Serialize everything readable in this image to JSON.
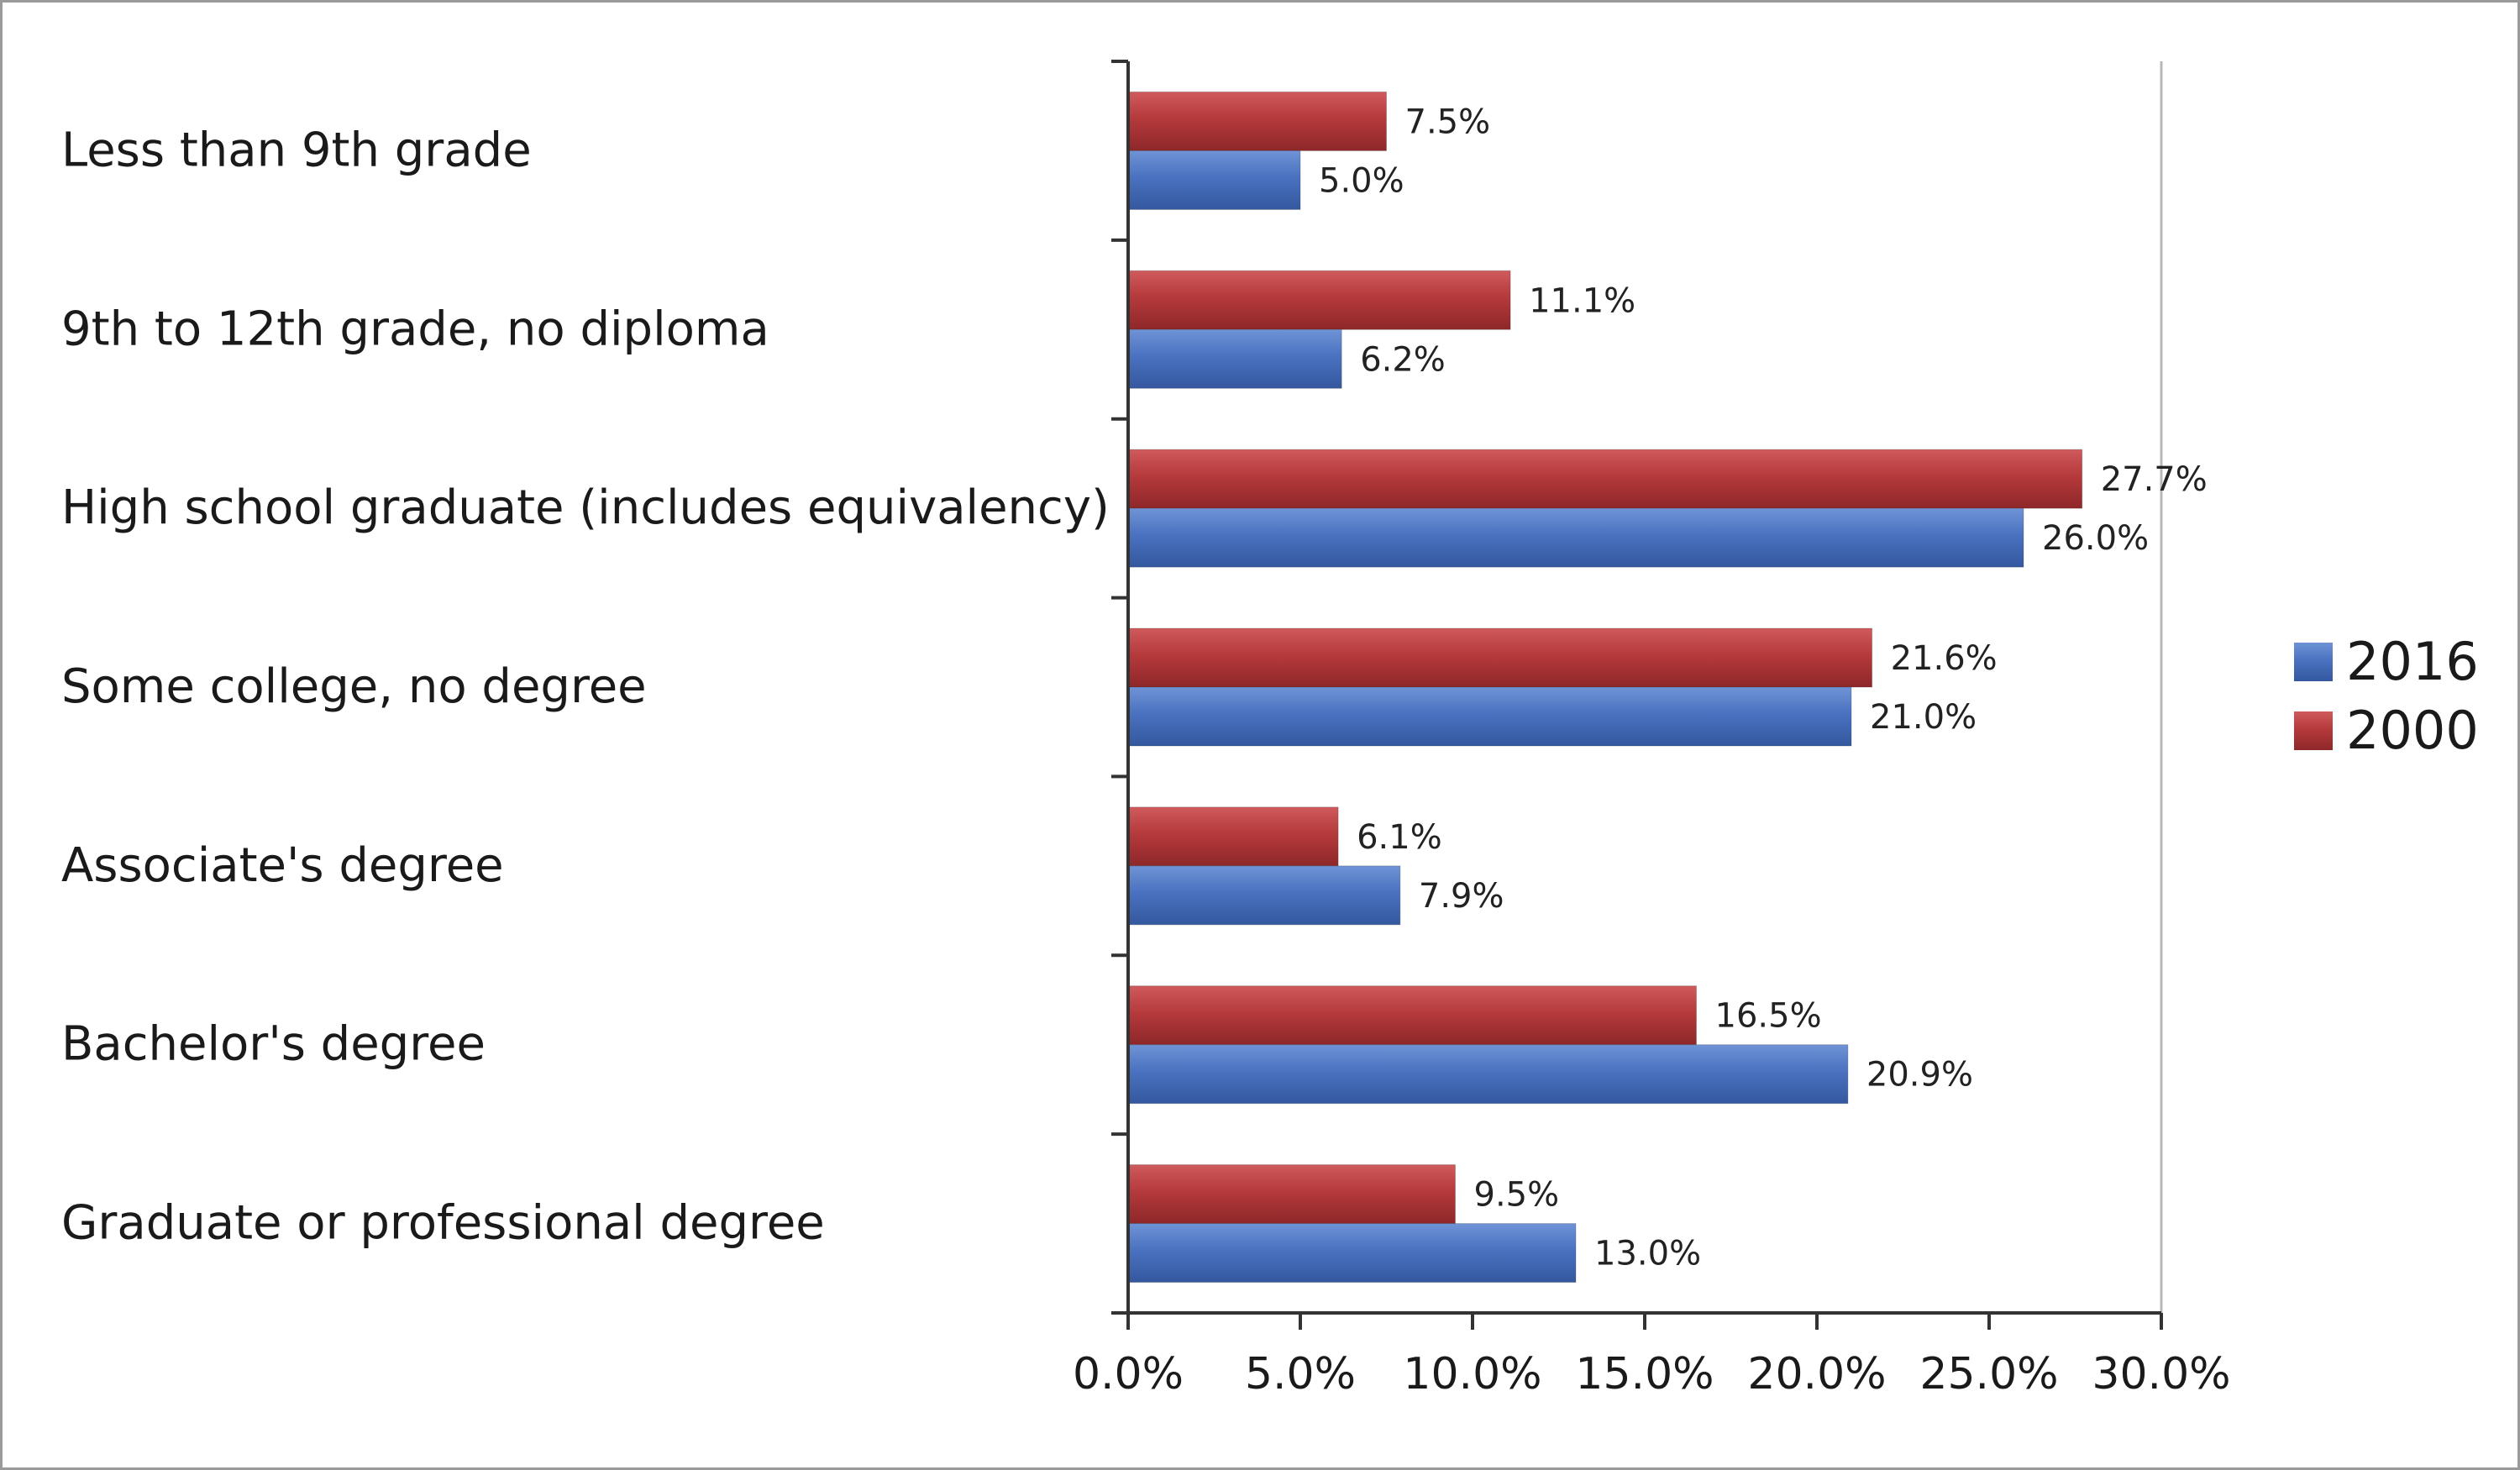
{
  "chart_data": {
    "type": "bar",
    "orientation": "horizontal",
    "title": "",
    "xlabel": "",
    "ylabel": "",
    "categories": [
      "Less than 9th grade",
      "9th to 12th grade, no diploma",
      "High school graduate (includes equivalency)",
      "Some college, no degree",
      "Associate's degree",
      "Bachelor's degree",
      "Graduate or professional degree"
    ],
    "series": [
      {
        "name": "2016",
        "color": "#4a72c0",
        "values": [
          5.0,
          6.2,
          26.0,
          21.0,
          7.9,
          20.9,
          13.0
        ],
        "labels": [
          "5.0%",
          "6.2%",
          "26.0%",
          "21.0%",
          "7.9%",
          "20.9%",
          "13.0%"
        ]
      },
      {
        "name": "2000",
        "color": "#b53a3c",
        "values": [
          7.5,
          11.1,
          27.7,
          21.6,
          6.1,
          16.5,
          9.5
        ],
        "labels": [
          "7.5%",
          "11.1%",
          "27.7%",
          "21.6%",
          "6.1%",
          "16.5%",
          "9.5%"
        ]
      }
    ],
    "xlim": [
      0,
      30
    ],
    "xticks": [
      0,
      5,
      10,
      15,
      20,
      25,
      30
    ],
    "xtick_labels": [
      "0.0%",
      "5.0%",
      "10.0%",
      "15.0%",
      "20.0%",
      "25.0%",
      "30.0%"
    ],
    "grid": false,
    "legend_position": "right",
    "legend_order": [
      "2016",
      "2000"
    ]
  }
}
